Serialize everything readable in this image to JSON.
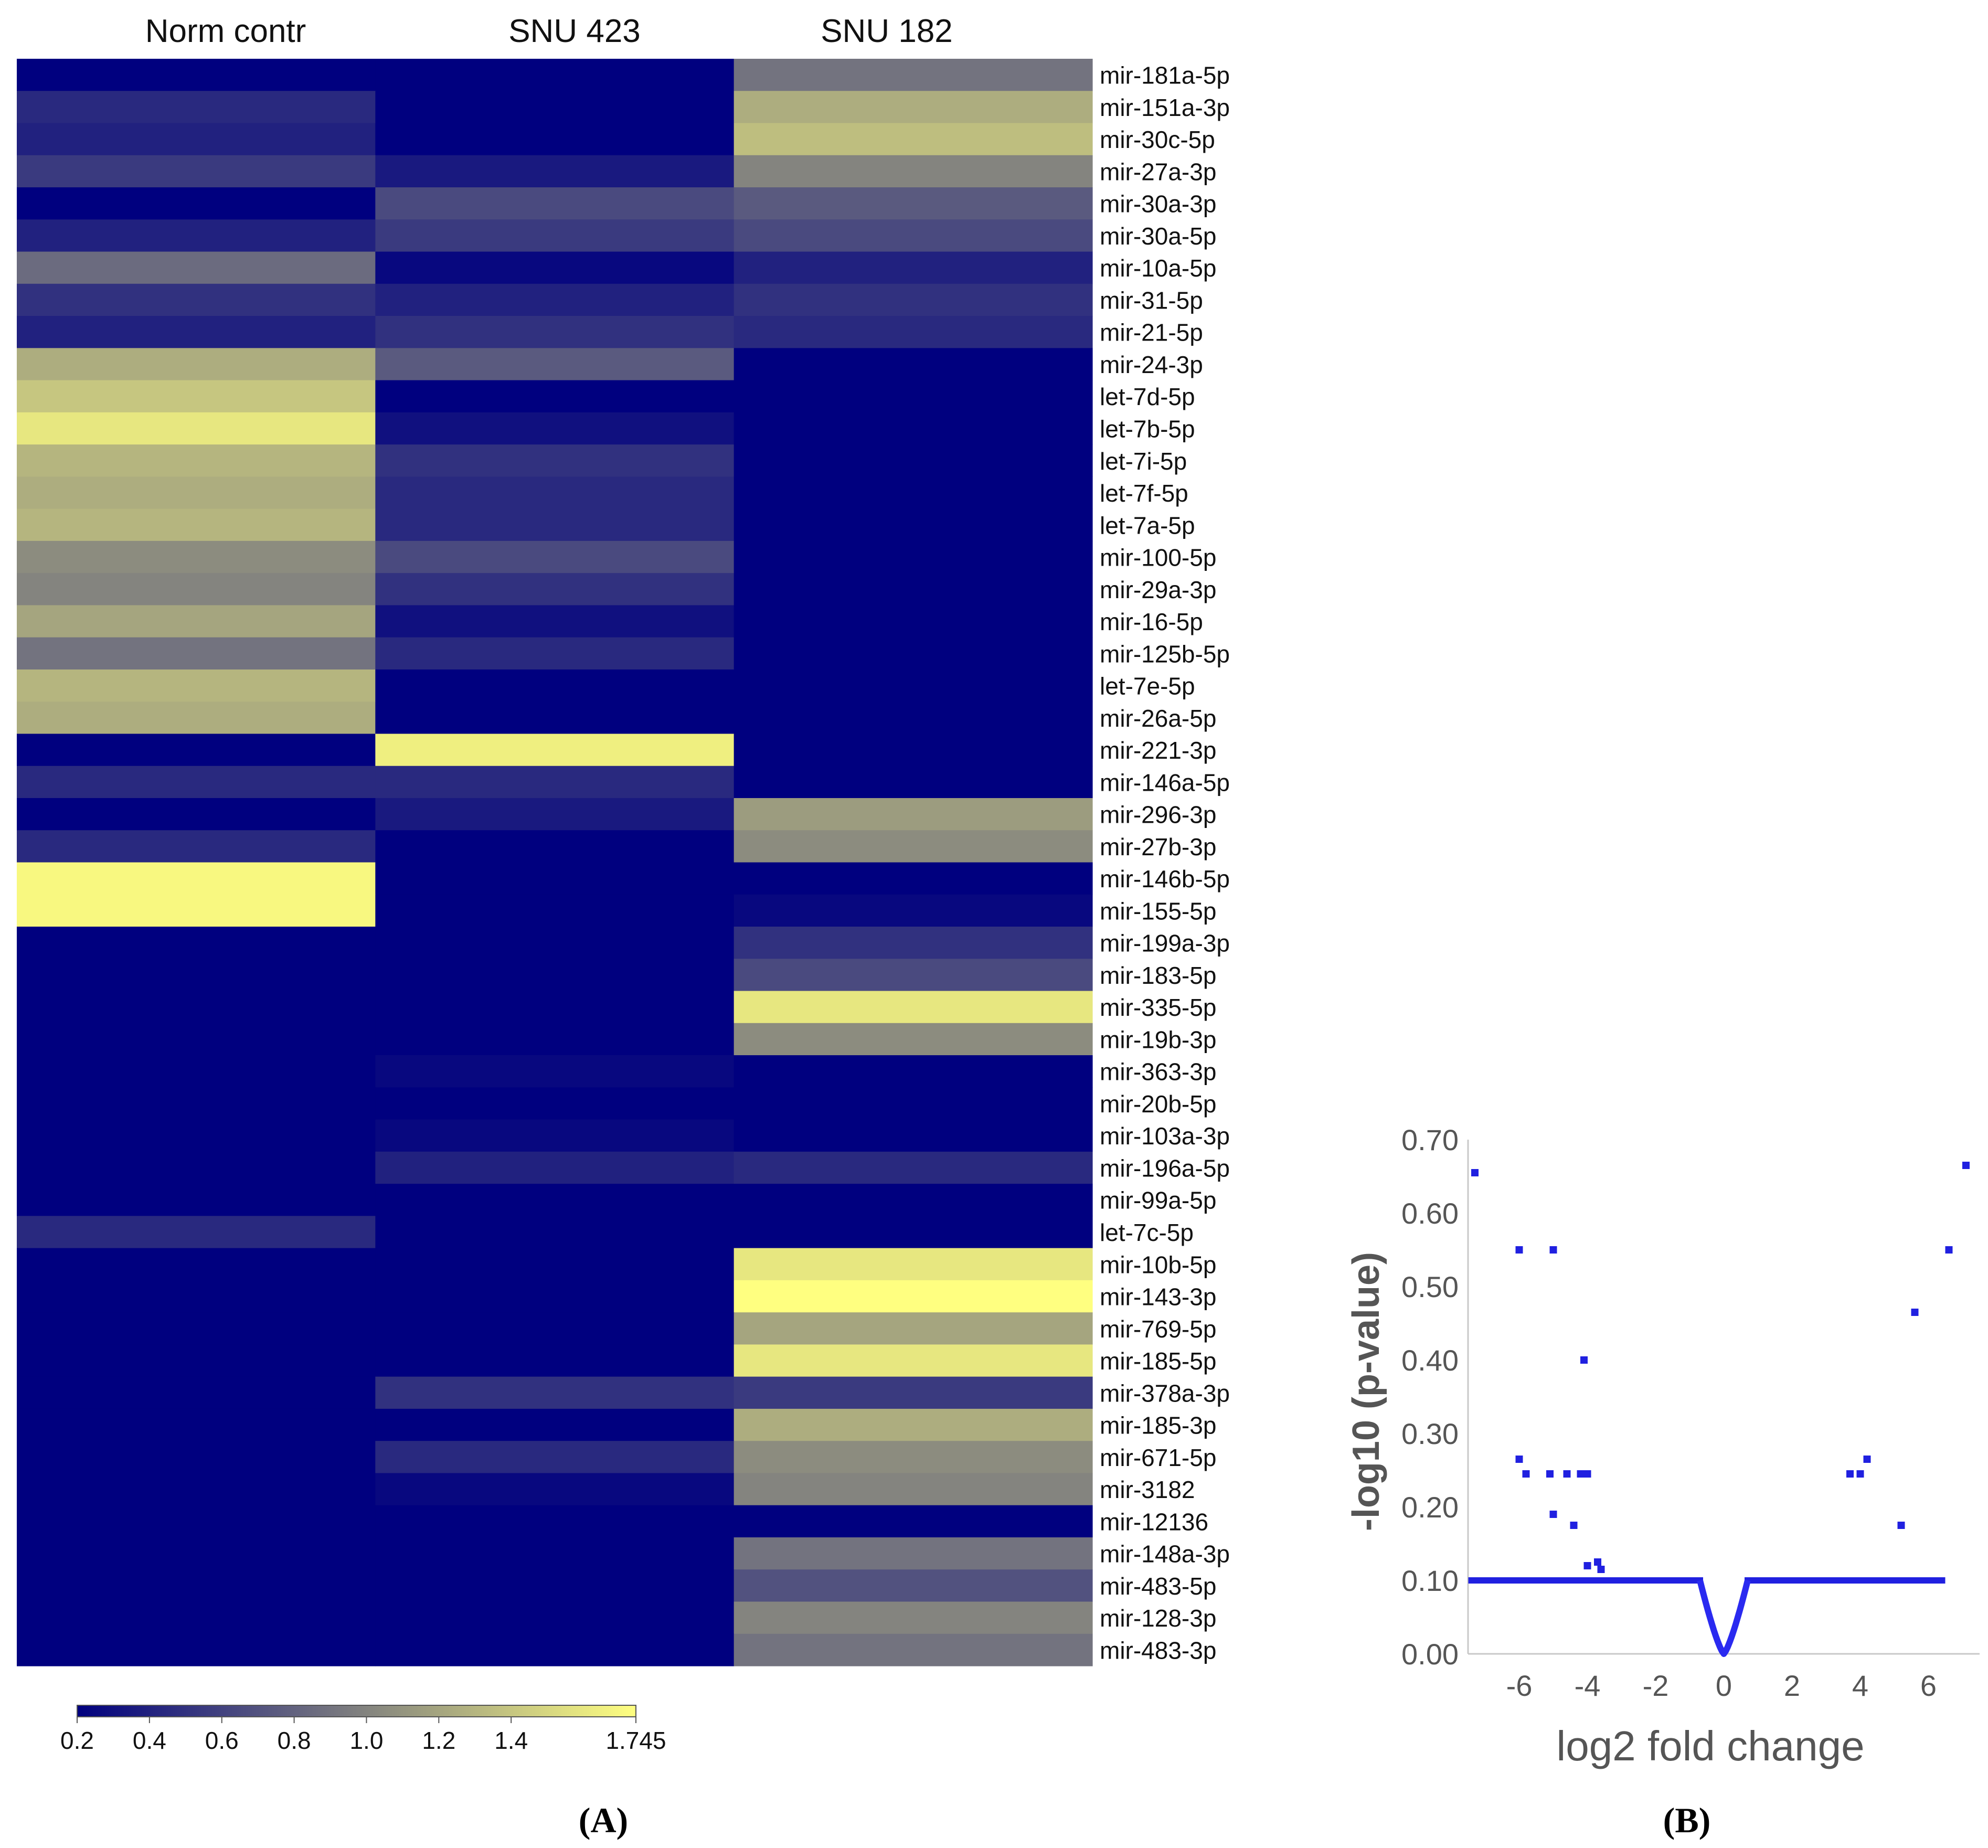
{
  "chart_data": [
    {
      "type": "heatmap",
      "panel_label": "A",
      "columns": [
        "Norm contr",
        "SNU 423",
        "SNU 182"
      ],
      "rows": [
        {
          "label": "mir-181a-5p",
          "values": [
            0.2,
            0.2,
            0.9
          ]
        },
        {
          "label": "mir-151a-3p",
          "values": [
            0.45,
            0.2,
            1.25
          ]
        },
        {
          "label": "mir-30c-5p",
          "values": [
            0.4,
            0.2,
            1.35
          ]
        },
        {
          "label": "mir-27a-3p",
          "values": [
            0.55,
            0.35,
            1.0
          ]
        },
        {
          "label": "mir-30a-3p",
          "values": [
            0.2,
            0.65,
            0.75
          ]
        },
        {
          "label": "mir-30a-5p",
          "values": [
            0.4,
            0.55,
            0.65
          ]
        },
        {
          "label": "mir-10a-5p",
          "values": [
            0.85,
            0.25,
            0.4
          ]
        },
        {
          "label": "mir-31-5p",
          "values": [
            0.5,
            0.4,
            0.5
          ]
        },
        {
          "label": "mir-21-5p",
          "values": [
            0.4,
            0.5,
            0.45
          ]
        },
        {
          "label": "mir-24-3p",
          "values": [
            1.25,
            0.75,
            0.2
          ]
        },
        {
          "label": "let-7d-5p",
          "values": [
            1.4,
            0.2,
            0.2
          ]
        },
        {
          "label": "let-7b-5p",
          "values": [
            1.6,
            0.3,
            0.2
          ]
        },
        {
          "label": "let-7i-5p",
          "values": [
            1.3,
            0.5,
            0.2
          ]
        },
        {
          "label": "let-7f-5p",
          "values": [
            1.25,
            0.45,
            0.2
          ]
        },
        {
          "label": "let-7a-5p",
          "values": [
            1.3,
            0.45,
            0.2
          ]
        },
        {
          "label": "mir-100-5p",
          "values": [
            1.05,
            0.65,
            0.2
          ]
        },
        {
          "label": "mir-29a-3p",
          "values": [
            1.0,
            0.5,
            0.2
          ]
        },
        {
          "label": "mir-16-5p",
          "values": [
            1.2,
            0.3,
            0.2
          ]
        },
        {
          "label": "mir-125b-5p",
          "values": [
            0.9,
            0.45,
            0.2
          ]
        },
        {
          "label": "let-7e-5p",
          "values": [
            1.3,
            0.2,
            0.2
          ]
        },
        {
          "label": "mir-26a-5p",
          "values": [
            1.25,
            0.2,
            0.2
          ]
        },
        {
          "label": "mir-221-3p",
          "values": [
            0.2,
            1.65,
            0.2
          ]
        },
        {
          "label": "mir-146a-5p",
          "values": [
            0.45,
            0.45,
            0.2
          ]
        },
        {
          "label": "mir-296-3p",
          "values": [
            0.2,
            0.35,
            1.15
          ]
        },
        {
          "label": "mir-27b-3p",
          "values": [
            0.45,
            0.2,
            1.05
          ]
        },
        {
          "label": "mir-146b-5p",
          "values": [
            1.7,
            0.2,
            0.2
          ]
        },
        {
          "label": "mir-155-5p",
          "values": [
            1.7,
            0.2,
            0.25
          ]
        },
        {
          "label": "mir-199a-3p",
          "values": [
            0.2,
            0.2,
            0.5
          ]
        },
        {
          "label": "mir-183-5p",
          "values": [
            0.2,
            0.2,
            0.65
          ]
        },
        {
          "label": "mir-335-5p",
          "values": [
            0.2,
            0.2,
            1.6
          ]
        },
        {
          "label": "mir-19b-3p",
          "values": [
            0.2,
            0.2,
            1.05
          ]
        },
        {
          "label": "mir-363-3p",
          "values": [
            0.2,
            0.25,
            0.2
          ]
        },
        {
          "label": "mir-20b-5p",
          "values": [
            0.2,
            0.2,
            0.2
          ]
        },
        {
          "label": "mir-103a-3p",
          "values": [
            0.2,
            0.25,
            0.2
          ]
        },
        {
          "label": "mir-196a-5p",
          "values": [
            0.2,
            0.4,
            0.45
          ]
        },
        {
          "label": "mir-99a-5p",
          "values": [
            0.2,
            0.2,
            0.2
          ]
        },
        {
          "label": "let-7c-5p",
          "values": [
            0.45,
            0.2,
            0.2
          ]
        },
        {
          "label": "mir-10b-5p",
          "values": [
            0.2,
            0.2,
            1.6
          ]
        },
        {
          "label": "mir-143-3p",
          "values": [
            0.2,
            0.2,
            1.745
          ]
        },
        {
          "label": "mir-769-5p",
          "values": [
            0.2,
            0.2,
            1.2
          ]
        },
        {
          "label": "mir-185-5p",
          "values": [
            0.2,
            0.2,
            1.6
          ]
        },
        {
          "label": "mir-378a-3p",
          "values": [
            0.2,
            0.5,
            0.55
          ]
        },
        {
          "label": "mir-185-3p",
          "values": [
            0.2,
            0.2,
            1.25
          ]
        },
        {
          "label": "mir-671-5p",
          "values": [
            0.2,
            0.45,
            1.05
          ]
        },
        {
          "label": "mir-3182",
          "values": [
            0.2,
            0.25,
            1.0
          ]
        },
        {
          "label": "mir-12136",
          "values": [
            0.2,
            0.2,
            0.2
          ]
        },
        {
          "label": "mir-148a-3p",
          "values": [
            0.2,
            0.2,
            0.9
          ]
        },
        {
          "label": "mir-483-5p",
          "values": [
            0.2,
            0.2,
            0.7
          ]
        },
        {
          "label": "mir-128-3p",
          "values": [
            0.2,
            0.2,
            1.0
          ]
        },
        {
          "label": "mir-483-3p",
          "values": [
            0.2,
            0.2,
            0.9
          ]
        }
      ],
      "colorbar": {
        "min": 0.2,
        "max": 1.745,
        "ticks": [
          0.2,
          0.4,
          0.6,
          0.8,
          1.0,
          1.2,
          1.4,
          1.745
        ],
        "tick_labels": [
          "0.2",
          "0.4",
          "0.6",
          "0.8",
          "1.0",
          "1.2",
          "1.4",
          "1.745"
        ],
        "colors": {
          "low": "#00007f",
          "mid": "#7f7f7f",
          "high": "#ffff80"
        }
      }
    },
    {
      "type": "scatter",
      "panel_label": "B",
      "xlabel": "log2 fold change",
      "ylabel": "-log10 (p-value)",
      "xlim": [
        -7.5,
        7.5
      ],
      "ylim": [
        0.0,
        0.7
      ],
      "xticks": [
        -6,
        -4,
        -2,
        0,
        2,
        4,
        6
      ],
      "xtick_labels": [
        "-6",
        "-4",
        "-2",
        "0",
        "2",
        "4",
        "6"
      ],
      "yticks": [
        0.0,
        0.1,
        0.2,
        0.3,
        0.4,
        0.5,
        0.6,
        0.7
      ],
      "ytick_labels": [
        "0.00",
        "0.10",
        "0.20",
        "0.30",
        "0.40",
        "0.50",
        "0.60",
        "0.70"
      ],
      "point_color": "#2020e0",
      "points": [
        {
          "x": -7.3,
          "y": 0.655
        },
        {
          "x": -6.0,
          "y": 0.55
        },
        {
          "x": -5.0,
          "y": 0.55
        },
        {
          "x": -4.1,
          "y": 0.4
        },
        {
          "x": -6.0,
          "y": 0.265
        },
        {
          "x": -5.8,
          "y": 0.245
        },
        {
          "x": -5.1,
          "y": 0.245
        },
        {
          "x": -4.6,
          "y": 0.245
        },
        {
          "x": -4.2,
          "y": 0.245
        },
        {
          "x": -4.0,
          "y": 0.245
        },
        {
          "x": -5.0,
          "y": 0.19
        },
        {
          "x": -4.4,
          "y": 0.175
        },
        {
          "x": -4.0,
          "y": 0.12
        },
        {
          "x": -3.7,
          "y": 0.125
        },
        {
          "x": -3.6,
          "y": 0.115
        },
        {
          "x": 3.7,
          "y": 0.245
        },
        {
          "x": 4.0,
          "y": 0.245
        },
        {
          "x": 4.2,
          "y": 0.265
        },
        {
          "x": 5.6,
          "y": 0.465
        },
        {
          "x": 5.2,
          "y": 0.175
        },
        {
          "x": 6.6,
          "y": 0.55
        },
        {
          "x": 7.1,
          "y": 0.665
        }
      ],
      "baseline": {
        "y": 0.1,
        "x_ranges": [
          [
            -7.4,
            -0.7
          ],
          [
            0.7,
            6.4
          ]
        ],
        "count_per_range": 60
      },
      "dip": {
        "x_half_width": 0.7,
        "y_top": 0.1,
        "y_bottom": 0.0
      }
    }
  ],
  "panel_labels": {
    "a": "(A)",
    "b": "(B)"
  }
}
